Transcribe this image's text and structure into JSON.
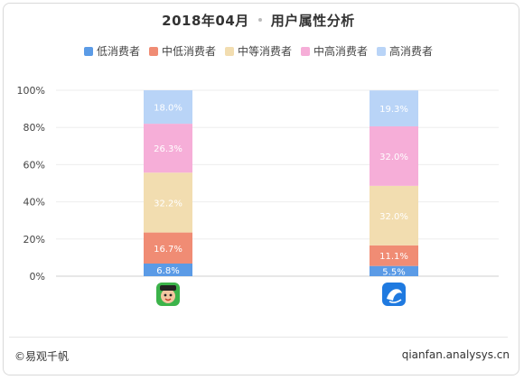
{
  "header": {
    "date": "2018年04月",
    "subtitle": "用户属性分析"
  },
  "footer": {
    "source": "©易观千帆",
    "site": "qianfan.analysys.cn"
  },
  "icons": [
    "app-icon-green-mascot",
    "app-icon-blue-dolphin"
  ],
  "chart_data": {
    "type": "bar",
    "stacked": true,
    "title": "2018年04月 · 用户属性分析",
    "categories": [
      "",
      ""
    ],
    "y_ticks": [
      "0%",
      "20%",
      "40%",
      "60%",
      "80%",
      "100%"
    ],
    "ylim": [
      0,
      100
    ],
    "grid": true,
    "legend_position": "top",
    "series": [
      {
        "name": "低消费者",
        "color": "#5b9be6",
        "values": [
          6.8,
          5.5
        ],
        "labels": [
          "6.8%",
          "5.5%"
        ]
      },
      {
        "name": "中低消费者",
        "color": "#f08c74",
        "values": [
          16.7,
          11.1
        ],
        "labels": [
          "16.7%",
          "11.1%"
        ]
      },
      {
        "name": "中等消费者",
        "color": "#f2ddb0",
        "values": [
          32.2,
          32.0
        ],
        "labels": [
          "32.2%",
          "32.0%"
        ]
      },
      {
        "name": "中高消费者",
        "color": "#f6aed8",
        "values": [
          26.3,
          32.0
        ],
        "labels": [
          "26.3%",
          "32.0%"
        ]
      },
      {
        "name": "高消费者",
        "color": "#b9d4f7",
        "values": [
          18.0,
          19.3
        ],
        "labels": [
          "18.0%",
          "19.3%"
        ]
      }
    ]
  }
}
